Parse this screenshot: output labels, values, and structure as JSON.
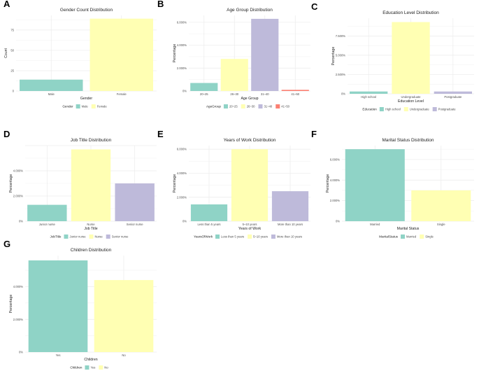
{
  "colors": {
    "teal": "#8fd3c6",
    "yellow": "#ffffb3",
    "purple": "#bebada",
    "red": "#fb8072",
    "grid": "#ebebeb",
    "text": "#222222",
    "tick": "#4d4d4d"
  },
  "chart_data": [
    {
      "panel": "A",
      "type": "bar",
      "title": "Gender Count Distribution",
      "xlabel": "Gender",
      "ylabel": "Count",
      "categories": [
        "Male",
        "Female"
      ],
      "values": [
        14,
        89
      ],
      "ylim": [
        0,
        93
      ],
      "yticks": [
        0,
        25,
        50,
        75
      ],
      "ytick_labels": [
        "0",
        "25",
        "50",
        "75"
      ],
      "legend_title": "Gender",
      "legend": [
        "Male",
        "Female"
      ],
      "colors": [
        "teal",
        "yellow"
      ]
    },
    {
      "panel": "B",
      "type": "bar",
      "title": "Age Group Distribution",
      "xlabel": "Age Group",
      "ylabel": "Percentage",
      "categories": [
        "20~25",
        "26~30",
        "31~40",
        "41~50"
      ],
      "values": [
        0.7,
        2.8,
        6.3,
        0.1
      ],
      "ylim": [
        0,
        6.6
      ],
      "yticks": [
        0,
        2,
        4,
        6
      ],
      "ytick_labels": [
        "0%",
        "2.000%",
        "4.000%",
        "6.000%"
      ],
      "legend_title": "AgeGroup",
      "legend": [
        "20~25",
        "26~30",
        "31~40",
        "41~50"
      ],
      "colors": [
        "teal",
        "yellow",
        "purple",
        "red"
      ]
    },
    {
      "panel": "C",
      "type": "bar",
      "title": "Education Level Distribution",
      "xlabel": "Education Level",
      "ylabel": "Percentage",
      "categories": [
        "High school",
        "Undergraduate",
        "Postgraduate"
      ],
      "values": [
        0.3,
        9.3,
        0.3
      ],
      "ylim": [
        0,
        9.8
      ],
      "yticks": [
        0,
        2.5,
        5,
        7.5
      ],
      "ytick_labels": [
        "0%",
        "2.500%",
        "5.000%",
        "7.500%"
      ],
      "legend_title": "Education",
      "legend": [
        "High school",
        "Undergraduate",
        "Postgraduate"
      ],
      "colors": [
        "teal",
        "yellow",
        "purple"
      ]
    },
    {
      "panel": "D",
      "type": "bar",
      "title": "Job Title Distribution",
      "xlabel": "Job Title",
      "ylabel": "Percentage",
      "categories": [
        "Junior nurse",
        "Nurse",
        "Senior nurse"
      ],
      "values": [
        1.3,
        5.7,
        3.0
      ],
      "ylim": [
        0,
        6.0
      ],
      "yticks": [
        0,
        2,
        4
      ],
      "ytick_labels": [
        "0%",
        "2.000%",
        "4.000%"
      ],
      "legend_title": "JobTitle",
      "legend": [
        "Junior nurse",
        "Nurse",
        "Senior nurse"
      ],
      "colors": [
        "teal",
        "yellow",
        "purple"
      ]
    },
    {
      "panel": "E",
      "type": "bar",
      "title": "Years of Work Distribution",
      "xlabel": "Years of Work",
      "ylabel": "Percentage",
      "categories": [
        "Less than 5 years",
        "5~10 years",
        "More than 10 years"
      ],
      "values": [
        1.4,
        6.0,
        2.5
      ],
      "ylim": [
        0,
        6.3
      ],
      "yticks": [
        0,
        2,
        4,
        6
      ],
      "ytick_labels": [
        "0%",
        "2.000%",
        "4.000%",
        "6.000%"
      ],
      "legend_title": "YearsOfWork",
      "legend": [
        "Less than 5 years",
        "5~10 years",
        "More than 10 years"
      ],
      "colors": [
        "teal",
        "yellow",
        "purple"
      ]
    },
    {
      "panel": "F",
      "type": "bar",
      "title": "Marital Status Distribution",
      "xlabel": "Marital Status",
      "ylabel": "Percentage",
      "categories": [
        "Married",
        "Single"
      ],
      "values": [
        7.0,
        3.0
      ],
      "ylim": [
        0,
        7.35
      ],
      "yticks": [
        0,
        2,
        4,
        6
      ],
      "ytick_labels": [
        "0%",
        "2.000%",
        "4.000%",
        "6.000%"
      ],
      "legend_title": "MaritalStatus",
      "legend": [
        "Married",
        "Single"
      ],
      "colors": [
        "teal",
        "yellow"
      ]
    },
    {
      "panel": "G",
      "type": "bar",
      "title": "Children Distribution",
      "xlabel": "Children",
      "ylabel": "Percentage",
      "categories": [
        "Yes",
        "No"
      ],
      "values": [
        5.6,
        4.4
      ],
      "ylim": [
        0,
        5.9
      ],
      "yticks": [
        0,
        2,
        4
      ],
      "ytick_labels": [
        "0%",
        "2.000%",
        "4.000%"
      ],
      "legend_title": "Children",
      "legend": [
        "Yes",
        "No"
      ],
      "colors": [
        "teal",
        "yellow"
      ]
    }
  ]
}
